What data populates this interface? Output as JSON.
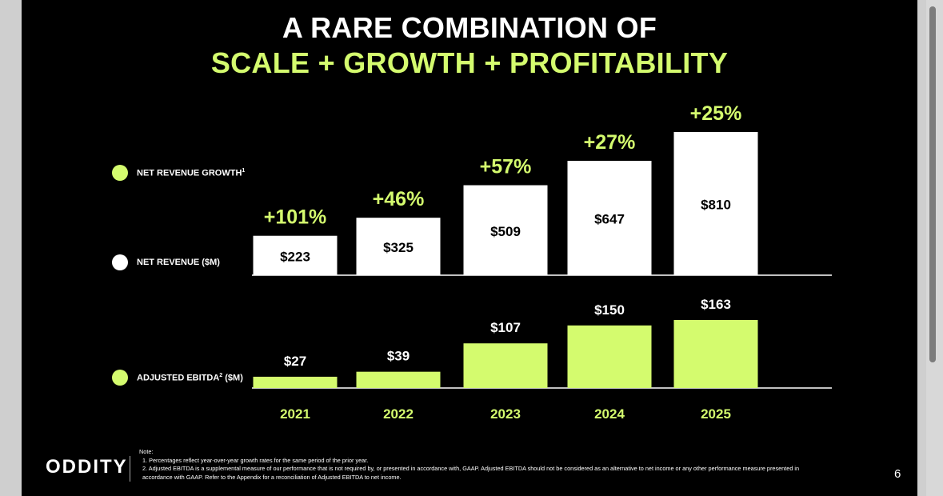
{
  "title": {
    "line1": "A RARE COMBINATION OF",
    "line2": "SCALE + GROWTH + PROFITABILITY"
  },
  "legend": {
    "growth": {
      "label": "NET REVENUE GROWTH",
      "sup": "1",
      "color": "#d4fb6e"
    },
    "revenue": {
      "label": "NET REVENUE ($M)",
      "color": "#ffffff"
    },
    "ebitda": {
      "label": "ADJUSTED EBITDA",
      "sup": "2",
      "suffix": " ($M)",
      "color": "#d4fb6e"
    }
  },
  "chart_data": {
    "type": "bar",
    "categories": [
      "2021",
      "2022",
      "2023",
      "2024",
      "2025"
    ],
    "series": [
      {
        "name": "NET REVENUE ($M)",
        "values": [
          223,
          325,
          509,
          647,
          810
        ],
        "labels": [
          "$223",
          "$325",
          "$509",
          "$647",
          "$810"
        ],
        "color": "#ffffff"
      },
      {
        "name": "NET REVENUE GROWTH",
        "values": [
          101,
          46,
          57,
          27,
          25
        ],
        "labels": [
          "+101%",
          "+46%",
          "+57%",
          "+27%",
          "+25%"
        ],
        "color": "#d4fb6e"
      },
      {
        "name": "ADJUSTED EBITDA ($M)",
        "values": [
          27,
          39,
          107,
          150,
          163
        ],
        "labels": [
          "$27",
          "$39",
          "$107",
          "$150",
          "$163"
        ],
        "color": "#d4fb6e"
      }
    ]
  },
  "footer": {
    "logo": "ODDITY",
    "note_title": "Note:",
    "note1": "1. Percentages reflect year-over-year growth rates for the same period of the prior year.",
    "note2a": "2. Adjusted EBITDA is a supplemental measure of our performance that is not required by, or presented in accordance with, GAAP. Adjusted EBITDA should not be considered as an alternative to net income or any other performance measure presented in",
    "note2b": "accordance with GAAP. Refer to the Appendix for a reconciliation of Adjusted EBITDA to net income.",
    "page": "6"
  }
}
